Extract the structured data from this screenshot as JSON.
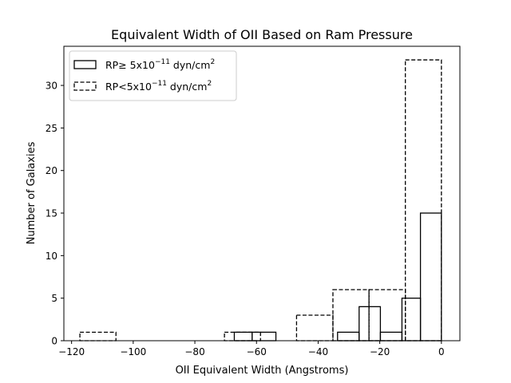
{
  "chart_data": {
    "type": "bar",
    "title": "Equivalent Width of OII Based on Ram Pressure",
    "xlabel": "OII Equivalent Width (Angstroms)",
    "ylabel": "Number of Galaxies",
    "xlim": [
      -122.5,
      6
    ],
    "ylim": [
      0,
      34.6
    ],
    "xticks": [
      -120,
      -100,
      -80,
      -60,
      -40,
      -20,
      0
    ],
    "xtick_labels": [
      "−120",
      "−100",
      "−80",
      "−60",
      "−40",
      "−20",
      "0"
    ],
    "yticks": [
      0,
      5,
      10,
      15,
      20,
      25,
      30
    ],
    "ytick_labels": [
      "0",
      "5",
      "10",
      "15",
      "20",
      "25",
      "30"
    ],
    "grid": false,
    "legend_position": "upper-left",
    "series": [
      {
        "name": "RP≥ 5x10⁻¹¹ dyn/cm²",
        "label_base": "RP≥  5x10",
        "label_exp": "−11",
        "label_unit": " dyn/cm",
        "label_unit_exp": "2",
        "linestyle": "solid",
        "bins": [
          {
            "x0": -67.2,
            "x1": -61.4,
            "count": 1
          },
          {
            "x0": -61.4,
            "x1": -53.7,
            "count": 1
          },
          {
            "x0": -33.7,
            "x1": -26.7,
            "count": 1
          },
          {
            "x0": -26.7,
            "x1": -19.8,
            "count": 4
          },
          {
            "x0": -19.8,
            "x1": -12.8,
            "count": 1
          },
          {
            "x0": -12.8,
            "x1": -6.8,
            "count": 5
          },
          {
            "x0": -6.8,
            "x1": 0,
            "count": 15
          }
        ]
      },
      {
        "name": "RP<5x10⁻¹¹ dyn/cm²",
        "label_base": "RP<5x10",
        "label_exp": "−11",
        "label_unit": " dyn/cm",
        "label_unit_exp": "2",
        "linestyle": "dashed",
        "bins": [
          {
            "x0": -117.3,
            "x1": -105.6,
            "count": 1
          },
          {
            "x0": -70.4,
            "x1": -58.7,
            "count": 1
          },
          {
            "x0": -47.0,
            "x1": -35.2,
            "count": 3
          },
          {
            "x0": -35.2,
            "x1": -23.5,
            "count": 6
          },
          {
            "x0": -23.5,
            "x1": -11.7,
            "count": 6
          },
          {
            "x0": -11.7,
            "x1": 0,
            "count": 33
          }
        ]
      }
    ]
  }
}
